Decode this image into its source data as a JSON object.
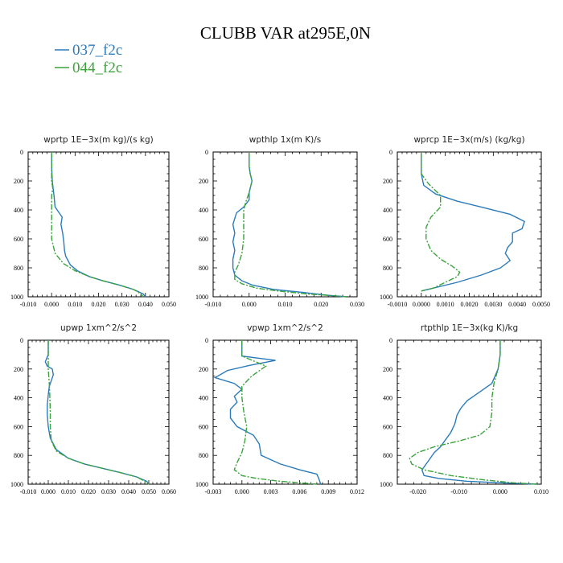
{
  "title": "CLUBB VAR at295E,0N",
  "colors": {
    "blue": "#2b7bba",
    "green": "#3aa33a"
  },
  "legend": [
    {
      "label": "037_f2c",
      "color": "#2b7bba",
      "dash": "solid"
    },
    {
      "label": "044_f2c",
      "color": "#3aa33a",
      "dash": "dashdot"
    }
  ],
  "chart_data": [
    {
      "type": "line",
      "title": "wprtp  1E−3x(m kg)/(s kg)",
      "xlim": [
        -0.01,
        0.05
      ],
      "xticks": [
        -0.01,
        0.0,
        0.01,
        0.02,
        0.03,
        0.04,
        0.05
      ],
      "xticklabels": [
        "-0.010",
        "0.000",
        "0.010",
        "0.020",
        "0.030",
        "0.040",
        "0.050"
      ],
      "ylim": [
        1000,
        0
      ],
      "yticks": [
        0,
        200,
        400,
        600,
        800,
        1000
      ],
      "yticklabels": [
        "0",
        "200",
        "400",
        "600",
        "800",
        "1000"
      ],
      "series": [
        {
          "name": "037_f2c",
          "x": [
            0.0,
            0.0,
            0.0003,
            0.001,
            0.0015,
            0.0045,
            0.004,
            0.0047,
            0.0052,
            0.0055,
            0.006,
            0.008,
            0.011,
            0.016,
            0.022,
            0.029,
            0.035,
            0.039,
            0.04
          ],
          "y": [
            0,
            100,
            200,
            300,
            380,
            450,
            500,
            560,
            620,
            680,
            720,
            780,
            820,
            860,
            890,
            920,
            950,
            980,
            1000
          ]
        },
        {
          "name": "044_f2c",
          "x": [
            0.0,
            0.0,
            0.0,
            0.0005,
            0.0,
            0.0,
            0.0,
            0.0,
            0.0015,
            0.005,
            0.01,
            0.016,
            0.022,
            0.029,
            0.035,
            0.038,
            0.039
          ],
          "y": [
            0,
            100,
            200,
            250,
            300,
            400,
            500,
            600,
            700,
            770,
            820,
            860,
            890,
            920,
            950,
            980,
            1000
          ]
        }
      ]
    },
    {
      "type": "line",
      "title": "wpthlp  1x(m K)/s",
      "xlim": [
        -0.01,
        0.03
      ],
      "xticks": [
        -0.01,
        0.0,
        0.01,
        0.02,
        0.03
      ],
      "xticklabels": [
        "-0.010",
        "0.000",
        "0.010",
        "0.020",
        "0.030"
      ],
      "ylim": [
        1000,
        0
      ],
      "yticks": [
        0,
        200,
        400,
        600,
        800,
        1000
      ],
      "yticklabels": [
        "0",
        "200",
        "400",
        "600",
        "800",
        "1000"
      ],
      "series": [
        {
          "name": "037_f2c",
          "x": [
            0.0,
            0.0,
            0.0003,
            0.0008,
            0.0,
            0.0,
            -0.0015,
            -0.0035,
            -0.0045,
            -0.004,
            -0.0045,
            -0.004,
            -0.0045,
            -0.0045,
            -0.004,
            -0.002,
            0.001,
            0.007,
            0.015,
            0.022,
            0.027
          ],
          "y": [
            0,
            100,
            150,
            200,
            280,
            330,
            380,
            420,
            500,
            560,
            620,
            680,
            740,
            800,
            850,
            890,
            920,
            950,
            970,
            990,
            1000
          ]
        },
        {
          "name": "044_f2c",
          "x": [
            0.0,
            0.0,
            0.0003,
            0.0008,
            0.0,
            -0.001,
            -0.0015,
            -0.0015,
            -0.0015,
            -0.002,
            -0.003,
            -0.004,
            -0.004,
            -0.002,
            0.002,
            0.008,
            0.016,
            0.022,
            0.027
          ],
          "y": [
            0,
            100,
            150,
            200,
            280,
            350,
            400,
            500,
            600,
            700,
            780,
            830,
            880,
            910,
            940,
            960,
            980,
            990,
            1000
          ]
        }
      ]
    },
    {
      "type": "line",
      "title": "wprcp  1E−3x(m/s) (kg/kg)",
      "xlim": [
        -0.001,
        0.005
      ],
      "xticks": [
        -0.001,
        0.0,
        0.001,
        0.002,
        0.003,
        0.004,
        0.005
      ],
      "xticklabels": [
        "-0.0010",
        "0.0000",
        "0.0010",
        "0.0020",
        "0.0030",
        "0.0040",
        "0.0050"
      ],
      "ylim": [
        1000,
        0
      ],
      "yticks": [
        0,
        200,
        400,
        600,
        800,
        1000
      ],
      "yticklabels": [
        "0",
        "200",
        "400",
        "600",
        "800",
        "1000"
      ],
      "series": [
        {
          "name": "037_f2c",
          "x": [
            0.0,
            0.0,
            0.0001,
            0.0006,
            0.0015,
            0.0025,
            0.0037,
            0.0043,
            0.0042,
            0.0038,
            0.0038,
            0.0036,
            0.0035,
            0.0037,
            0.0033,
            0.0025,
            0.0015,
            0.0005,
            0.0
          ],
          "y": [
            0,
            150,
            230,
            290,
            340,
            380,
            430,
            480,
            530,
            560,
            620,
            660,
            700,
            750,
            800,
            850,
            900,
            940,
            960
          ]
        },
        {
          "name": "044_f2c",
          "x": [
            0.0,
            0.0,
            0.0003,
            0.0008,
            0.0008,
            0.0004,
            0.0002,
            0.0002,
            0.0004,
            0.0008,
            0.0013,
            0.0016,
            0.0015,
            0.001,
            0.0005,
            0.0
          ],
          "y": [
            0,
            150,
            220,
            300,
            380,
            450,
            520,
            600,
            680,
            740,
            790,
            830,
            860,
            900,
            940,
            960
          ]
        }
      ]
    },
    {
      "type": "line",
      "title": "upwp  1xm^2/s^2",
      "xlim": [
        -0.01,
        0.06
      ],
      "xticks": [
        -0.01,
        0.0,
        0.01,
        0.02,
        0.03,
        0.04,
        0.05,
        0.06
      ],
      "xticklabels": [
        "-0.010",
        "0.000",
        "0.010",
        "0.020",
        "0.030",
        "0.040",
        "0.050",
        "0.060"
      ],
      "ylim": [
        1000,
        0
      ],
      "yticks": [
        0,
        200,
        400,
        600,
        800,
        1000
      ],
      "yticklabels": [
        "0",
        "200",
        "400",
        "600",
        "800",
        "1000"
      ],
      "series": [
        {
          "name": "037_f2c",
          "x": [
            0.0,
            0.0,
            -0.0015,
            -0.0005,
            0.002,
            0.0025,
            0.0015,
            0.0005,
            0.0,
            -0.0005,
            -0.0005,
            0.0,
            0.001,
            0.004,
            0.01,
            0.018,
            0.027,
            0.036,
            0.044,
            0.049,
            0.05
          ],
          "y": [
            0,
            100,
            150,
            180,
            200,
            240,
            280,
            320,
            380,
            450,
            520,
            600,
            680,
            760,
            820,
            860,
            890,
            920,
            950,
            980,
            1000
          ]
        },
        {
          "name": "044_f2c",
          "x": [
            0.0,
            0.0,
            0.0,
            0.0005,
            0.0008,
            0.001,
            0.001,
            0.0015,
            0.004,
            0.01,
            0.018,
            0.027,
            0.036,
            0.044,
            0.048,
            0.05
          ],
          "y": [
            0,
            100,
            200,
            300,
            400,
            500,
            600,
            700,
            770,
            820,
            860,
            890,
            920,
            950,
            980,
            1000
          ]
        }
      ]
    },
    {
      "type": "line",
      "title": "vpwp  1xm^2/s^2",
      "xlim": [
        -0.003,
        0.012
      ],
      "xticks": [
        -0.003,
        0.0,
        0.003,
        0.006,
        0.009,
        0.012
      ],
      "xticklabels": [
        "-0.003",
        "0.000",
        "0.003",
        "0.006",
        "0.009",
        "0.012"
      ],
      "ylim": [
        1000,
        0
      ],
      "yticks": [
        0,
        200,
        400,
        600,
        800,
        1000
      ],
      "yticklabels": [
        "0",
        "200",
        "400",
        "600",
        "800",
        "1000"
      ],
      "series": [
        {
          "name": "037_f2c",
          "x": [
            0.0,
            0.0,
            0.0035,
            0.0008,
            -0.0015,
            -0.0028,
            -0.0008,
            0.0,
            -0.0008,
            -0.0005,
            -0.0012,
            -0.0012,
            -0.0005,
            0.0012,
            0.0018,
            0.002,
            0.004,
            0.006,
            0.0078,
            0.008,
            0.0082
          ],
          "y": [
            0,
            110,
            140,
            175,
            210,
            260,
            300,
            340,
            390,
            430,
            480,
            540,
            600,
            660,
            720,
            800,
            860,
            900,
            930,
            960,
            1000
          ]
        },
        {
          "name": "044_f2c",
          "x": [
            0.0,
            0.0,
            0.0,
            0.0025,
            0.001,
            0.0,
            0.0,
            0.0002,
            0.0005,
            0.0003,
            0.0,
            -0.0005,
            -0.0008,
            0.0,
            0.0015,
            0.004,
            0.006,
            0.0078
          ],
          "y": [
            0,
            100,
            110,
            180,
            250,
            320,
            400,
            500,
            600,
            700,
            780,
            850,
            900,
            940,
            960,
            980,
            990,
            1000
          ]
        }
      ]
    },
    {
      "type": "line",
      "title": "rtpthlp  1E−3x(kg K)/kg",
      "xlim": [
        -0.025,
        0.01
      ],
      "xticks": [
        -0.02,
        -0.01,
        0.0,
        0.01
      ],
      "xticklabels": [
        "-0.020",
        "-0.010",
        "0.000",
        "0.010"
      ],
      "ylim": [
        1000,
        0
      ],
      "yticks": [
        0,
        200,
        400,
        600,
        800,
        1000
      ],
      "yticklabels": [
        "0",
        "200",
        "400",
        "600",
        "800",
        "1000"
      ],
      "series": [
        {
          "name": "037_f2c",
          "x": [
            0.0,
            0.0,
            -0.0005,
            -0.002,
            -0.005,
            -0.008,
            -0.0095,
            -0.0105,
            -0.011,
            -0.012,
            -0.0135,
            -0.0145,
            -0.016,
            -0.0175,
            -0.019,
            -0.0185,
            -0.015,
            -0.008,
            0.0,
            0.009
          ],
          "y": [
            0,
            100,
            200,
            300,
            360,
            420,
            470,
            520,
            580,
            640,
            700,
            740,
            780,
            840,
            900,
            940,
            960,
            980,
            990,
            1000
          ]
        },
        {
          "name": "044_f2c",
          "x": [
            0.0,
            0.0,
            -0.0005,
            -0.0015,
            -0.002,
            -0.002,
            -0.0025,
            -0.005,
            -0.01,
            -0.016,
            -0.02,
            -0.022,
            -0.0215,
            -0.0185,
            -0.012,
            -0.004,
            0.003,
            0.009
          ],
          "y": [
            0,
            100,
            200,
            300,
            400,
            500,
            600,
            660,
            700,
            740,
            780,
            820,
            860,
            900,
            940,
            970,
            990,
            1000
          ]
        }
      ]
    }
  ]
}
